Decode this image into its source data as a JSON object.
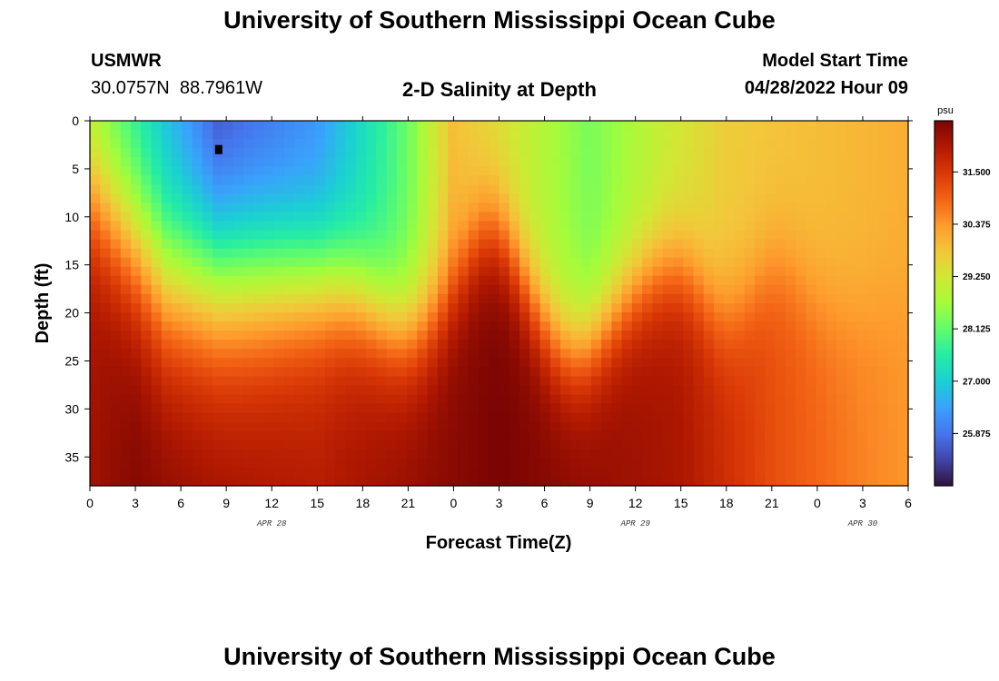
{
  "header": {
    "title": "University of Southern Mississippi Ocean Cube",
    "station": "USMWR",
    "coords": "30.0757N  88.7961W",
    "subtitle": "2-D Salinity at Depth",
    "model_start_label": "Model Start Time",
    "model_start_value": "04/28/2022 Hour 09",
    "footer_title": "University of Southern Mississippi Ocean Cube"
  },
  "chart_data": {
    "type": "heatmap",
    "title": "2-D Salinity at Depth",
    "xlabel": "Forecast Time(Z)",
    "ylabel": "Depth (ft)",
    "x_range_hours": [
      0,
      54
    ],
    "y_range_ft": [
      0,
      38
    ],
    "y_inverted": true,
    "x_tick_labels": [
      "0",
      "3",
      "6",
      "9",
      "12",
      "15",
      "18",
      "21",
      "0",
      "3",
      "6",
      "9",
      "12",
      "15",
      "18",
      "21",
      "0",
      "3",
      "6"
    ],
    "y_ticks": [
      0,
      5,
      10,
      15,
      20,
      25,
      30,
      35
    ],
    "date_labels": [
      {
        "text": "APR 28",
        "hour": 12
      },
      {
        "text": "APR 29",
        "hour": 36
      },
      {
        "text": "APR 30",
        "hour": 51
      }
    ],
    "marker": {
      "hour": 8.5,
      "depth": 3
    },
    "colorbar": {
      "unit": "psu",
      "min": 24.75,
      "max": 32.6,
      "tick_values": [
        31.5,
        30.375,
        29.25,
        28.125,
        27.0,
        25.875
      ],
      "tick_labels": [
        "31.500",
        "30.375",
        "29.250",
        "28.125",
        "27.000",
        "25.875"
      ],
      "colors": [
        "#30123b",
        "#4145ab",
        "#4675ed",
        "#39a2fc",
        "#1bcfd4",
        "#24eca6",
        "#61fc6c",
        "#a4fc3b",
        "#d1e834",
        "#f3c63a",
        "#fe9b2d",
        "#f36315",
        "#d93806",
        "#b11901",
        "#7a0403"
      ]
    },
    "surface_salinity": [
      {
        "hour": 0,
        "value": 28.6
      },
      {
        "hour": 8.5,
        "value": 25.3
      },
      {
        "hour": 15,
        "value": 26.2
      },
      {
        "hour": 21,
        "value": 28.2
      },
      {
        "hour": 24,
        "value": 29.9
      },
      {
        "hour": 33,
        "value": 28.3
      },
      {
        "hour": 36,
        "value": 28.8
      },
      {
        "hour": 42,
        "value": 29.7
      },
      {
        "hour": 54,
        "value": 30.1
      }
    ],
    "bottom_salinity": [
      {
        "hour": 0,
        "value": 32.2
      },
      {
        "hour": 3,
        "value": 32.5
      },
      {
        "hour": 15,
        "value": 32.0
      },
      {
        "hour": 27,
        "value": 32.6
      },
      {
        "hour": 39,
        "value": 32.1
      },
      {
        "hour": 45,
        "value": 31.2
      },
      {
        "hour": 51,
        "value": 30.6
      },
      {
        "hour": 54,
        "value": 30.4
      }
    ]
  }
}
